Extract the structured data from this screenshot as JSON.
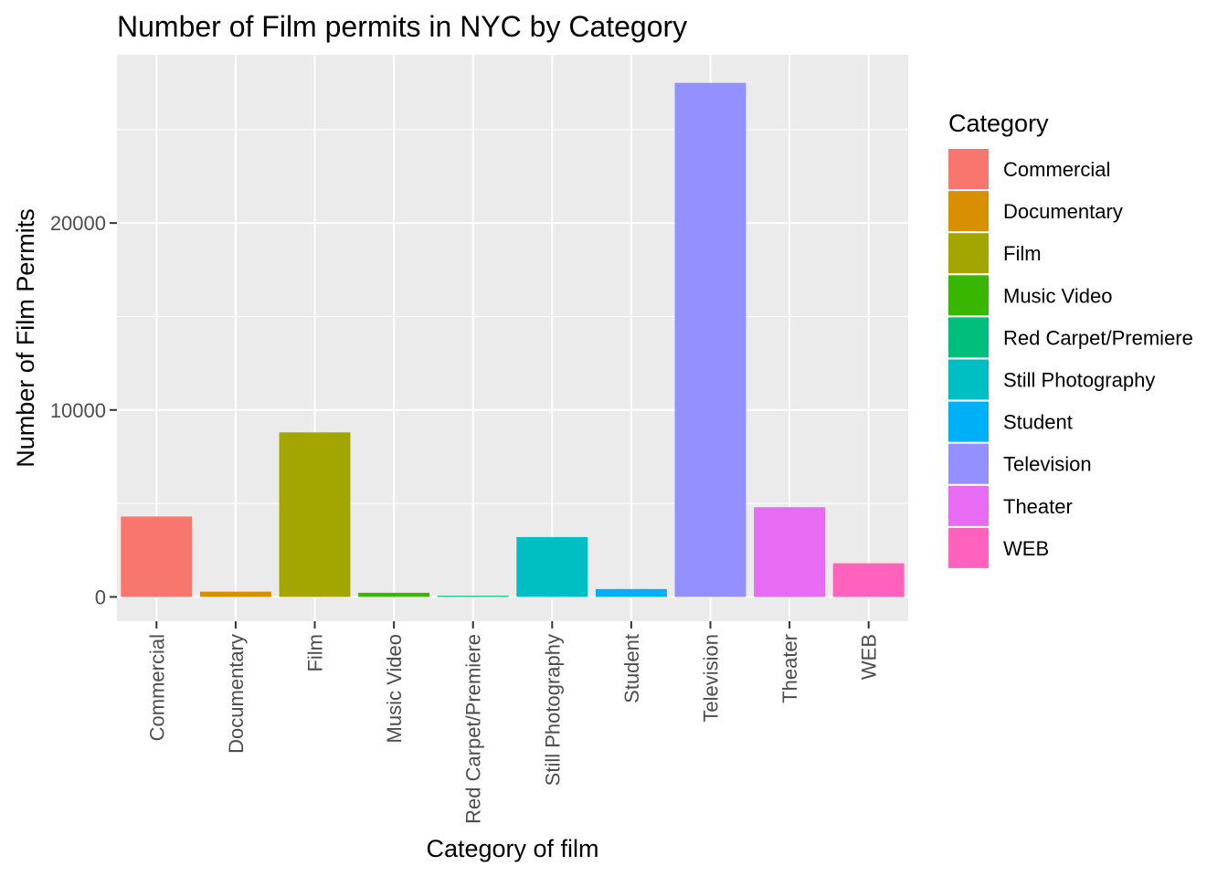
{
  "chart_data": {
    "type": "bar",
    "title": "Number of Film permits in NYC by Category",
    "xlabel": "Category of film",
    "ylabel": "Number of Film Permits",
    "categories": [
      "Commercial",
      "Documentary",
      "Film",
      "Music Video",
      "Red Carpet/Premiere",
      "Still Photography",
      "Student",
      "Television",
      "Theater",
      "WEB"
    ],
    "values": [
      4300,
      280,
      8800,
      220,
      60,
      3200,
      420,
      27500,
      4800,
      1800
    ],
    "colors": [
      "#F8766D",
      "#D89000",
      "#A3A500",
      "#39B600",
      "#00BF7D",
      "#00BFC4",
      "#00B0F6",
      "#9590FF",
      "#E76BF3",
      "#FF62BC"
    ],
    "ylim": [
      -1300,
      29000
    ],
    "yticks": [
      0,
      10000,
      20000
    ],
    "ytick_labels": [
      "0",
      "10000",
      "20000"
    ],
    "grid": true,
    "background": "#EBEBEB",
    "legend": {
      "title": "Category",
      "position": "right",
      "items": [
        "Commercial",
        "Documentary",
        "Film",
        "Music Video",
        "Red Carpet/Premiere",
        "Still Photography",
        "Student",
        "Television",
        "Theater",
        "WEB"
      ]
    }
  }
}
